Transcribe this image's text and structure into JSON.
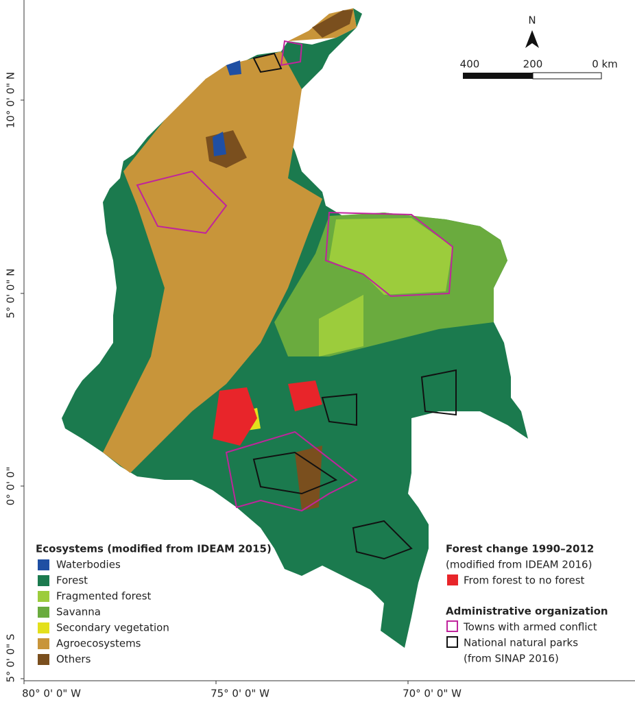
{
  "graticule": {
    "latitudes": [
      "10° 0' 0\" N",
      "5° 0' 0\" N",
      "0° 0' 0\"",
      "5° 0' 0\" S"
    ],
    "longitudes": [
      "80° 0' 0\" W",
      "75° 0' 0\" W",
      "70° 0' 0\" W"
    ]
  },
  "north_arrow": "N",
  "scale_bar": [
    "400",
    "200",
    "0 km"
  ],
  "ecosystems": {
    "title": "Ecosystems (modified from IDEAM 2015)",
    "items": [
      {
        "label": "Waterbodies",
        "color": "#1f4fa3"
      },
      {
        "label": "Forest",
        "color": "#1b7a4e"
      },
      {
        "label": "Fragmented forest",
        "color": "#9ccc3c"
      },
      {
        "label": "Savanna",
        "color": "#6aab3e"
      },
      {
        "label": "Secondary vegetation",
        "color": "#e3e01c"
      },
      {
        "label": "Agroecosystems",
        "color": "#c8953a"
      },
      {
        "label": "Others",
        "color": "#7a4f1e"
      }
    ]
  },
  "forest_change": {
    "title": "Forest change 1990–2012",
    "subtitle": "(modified from IDEAM 2016)",
    "item": {
      "label": "From forest to no forest",
      "color": "#e8252a"
    }
  },
  "administrative": {
    "title": "Administrative organization",
    "items": [
      {
        "label": "Towns with armed conflict",
        "color": "#c0249c"
      },
      {
        "label": "National natural parks",
        "color": "#111111"
      }
    ],
    "note": "(from SINAP 2016)"
  }
}
